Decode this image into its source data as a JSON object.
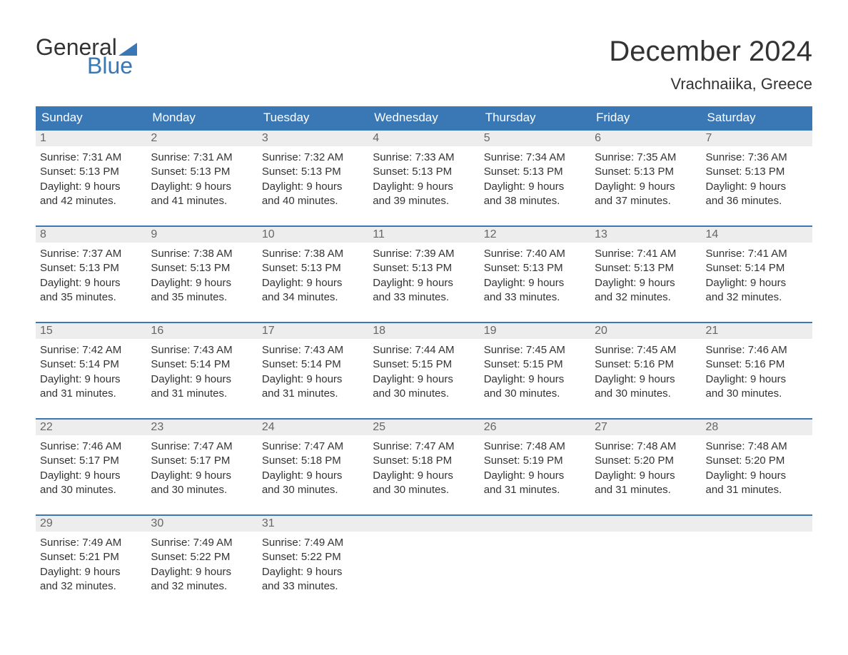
{
  "logo": {
    "word1": "General",
    "word2": "Blue",
    "flag_color": "#3a78b5",
    "text_color_dark": "#333333"
  },
  "title": "December 2024",
  "location": "Vrachnaiika, Greece",
  "colors": {
    "header_bg": "#3a78b5",
    "header_text": "#ffffff",
    "daynum_bg": "#ededed",
    "daynum_text": "#666666",
    "body_text": "#333333",
    "page_bg": "#ffffff",
    "week_border": "#3a78b5"
  },
  "typography": {
    "title_fontsize": 40,
    "location_fontsize": 22,
    "header_fontsize": 17,
    "body_fontsize": 15
  },
  "day_labels": [
    "Sunday",
    "Monday",
    "Tuesday",
    "Wednesday",
    "Thursday",
    "Friday",
    "Saturday"
  ],
  "weeks": [
    [
      {
        "n": "1",
        "sunrise": "7:31 AM",
        "sunset": "5:13 PM",
        "dl1": "Daylight: 9 hours",
        "dl2": "and 42 minutes."
      },
      {
        "n": "2",
        "sunrise": "7:31 AM",
        "sunset": "5:13 PM",
        "dl1": "Daylight: 9 hours",
        "dl2": "and 41 minutes."
      },
      {
        "n": "3",
        "sunrise": "7:32 AM",
        "sunset": "5:13 PM",
        "dl1": "Daylight: 9 hours",
        "dl2": "and 40 minutes."
      },
      {
        "n": "4",
        "sunrise": "7:33 AM",
        "sunset": "5:13 PM",
        "dl1": "Daylight: 9 hours",
        "dl2": "and 39 minutes."
      },
      {
        "n": "5",
        "sunrise": "7:34 AM",
        "sunset": "5:13 PM",
        "dl1": "Daylight: 9 hours",
        "dl2": "and 38 minutes."
      },
      {
        "n": "6",
        "sunrise": "7:35 AM",
        "sunset": "5:13 PM",
        "dl1": "Daylight: 9 hours",
        "dl2": "and 37 minutes."
      },
      {
        "n": "7",
        "sunrise": "7:36 AM",
        "sunset": "5:13 PM",
        "dl1": "Daylight: 9 hours",
        "dl2": "and 36 minutes."
      }
    ],
    [
      {
        "n": "8",
        "sunrise": "7:37 AM",
        "sunset": "5:13 PM",
        "dl1": "Daylight: 9 hours",
        "dl2": "and 35 minutes."
      },
      {
        "n": "9",
        "sunrise": "7:38 AM",
        "sunset": "5:13 PM",
        "dl1": "Daylight: 9 hours",
        "dl2": "and 35 minutes."
      },
      {
        "n": "10",
        "sunrise": "7:38 AM",
        "sunset": "5:13 PM",
        "dl1": "Daylight: 9 hours",
        "dl2": "and 34 minutes."
      },
      {
        "n": "11",
        "sunrise": "7:39 AM",
        "sunset": "5:13 PM",
        "dl1": "Daylight: 9 hours",
        "dl2": "and 33 minutes."
      },
      {
        "n": "12",
        "sunrise": "7:40 AM",
        "sunset": "5:13 PM",
        "dl1": "Daylight: 9 hours",
        "dl2": "and 33 minutes."
      },
      {
        "n": "13",
        "sunrise": "7:41 AM",
        "sunset": "5:13 PM",
        "dl1": "Daylight: 9 hours",
        "dl2": "and 32 minutes."
      },
      {
        "n": "14",
        "sunrise": "7:41 AM",
        "sunset": "5:14 PM",
        "dl1": "Daylight: 9 hours",
        "dl2": "and 32 minutes."
      }
    ],
    [
      {
        "n": "15",
        "sunrise": "7:42 AM",
        "sunset": "5:14 PM",
        "dl1": "Daylight: 9 hours",
        "dl2": "and 31 minutes."
      },
      {
        "n": "16",
        "sunrise": "7:43 AM",
        "sunset": "5:14 PM",
        "dl1": "Daylight: 9 hours",
        "dl2": "and 31 minutes."
      },
      {
        "n": "17",
        "sunrise": "7:43 AM",
        "sunset": "5:14 PM",
        "dl1": "Daylight: 9 hours",
        "dl2": "and 31 minutes."
      },
      {
        "n": "18",
        "sunrise": "7:44 AM",
        "sunset": "5:15 PM",
        "dl1": "Daylight: 9 hours",
        "dl2": "and 30 minutes."
      },
      {
        "n": "19",
        "sunrise": "7:45 AM",
        "sunset": "5:15 PM",
        "dl1": "Daylight: 9 hours",
        "dl2": "and 30 minutes."
      },
      {
        "n": "20",
        "sunrise": "7:45 AM",
        "sunset": "5:16 PM",
        "dl1": "Daylight: 9 hours",
        "dl2": "and 30 minutes."
      },
      {
        "n": "21",
        "sunrise": "7:46 AM",
        "sunset": "5:16 PM",
        "dl1": "Daylight: 9 hours",
        "dl2": "and 30 minutes."
      }
    ],
    [
      {
        "n": "22",
        "sunrise": "7:46 AM",
        "sunset": "5:17 PM",
        "dl1": "Daylight: 9 hours",
        "dl2": "and 30 minutes."
      },
      {
        "n": "23",
        "sunrise": "7:47 AM",
        "sunset": "5:17 PM",
        "dl1": "Daylight: 9 hours",
        "dl2": "and 30 minutes."
      },
      {
        "n": "24",
        "sunrise": "7:47 AM",
        "sunset": "5:18 PM",
        "dl1": "Daylight: 9 hours",
        "dl2": "and 30 minutes."
      },
      {
        "n": "25",
        "sunrise": "7:47 AM",
        "sunset": "5:18 PM",
        "dl1": "Daylight: 9 hours",
        "dl2": "and 30 minutes."
      },
      {
        "n": "26",
        "sunrise": "7:48 AM",
        "sunset": "5:19 PM",
        "dl1": "Daylight: 9 hours",
        "dl2": "and 31 minutes."
      },
      {
        "n": "27",
        "sunrise": "7:48 AM",
        "sunset": "5:20 PM",
        "dl1": "Daylight: 9 hours",
        "dl2": "and 31 minutes."
      },
      {
        "n": "28",
        "sunrise": "7:48 AM",
        "sunset": "5:20 PM",
        "dl1": "Daylight: 9 hours",
        "dl2": "and 31 minutes."
      }
    ],
    [
      {
        "n": "29",
        "sunrise": "7:49 AM",
        "sunset": "5:21 PM",
        "dl1": "Daylight: 9 hours",
        "dl2": "and 32 minutes."
      },
      {
        "n": "30",
        "sunrise": "7:49 AM",
        "sunset": "5:22 PM",
        "dl1": "Daylight: 9 hours",
        "dl2": "and 32 minutes."
      },
      {
        "n": "31",
        "sunrise": "7:49 AM",
        "sunset": "5:22 PM",
        "dl1": "Daylight: 9 hours",
        "dl2": "and 33 minutes."
      },
      {
        "empty": true
      },
      {
        "empty": true
      },
      {
        "empty": true
      },
      {
        "empty": true
      }
    ]
  ],
  "labels": {
    "sunrise_prefix": "Sunrise: ",
    "sunset_prefix": "Sunset: "
  }
}
